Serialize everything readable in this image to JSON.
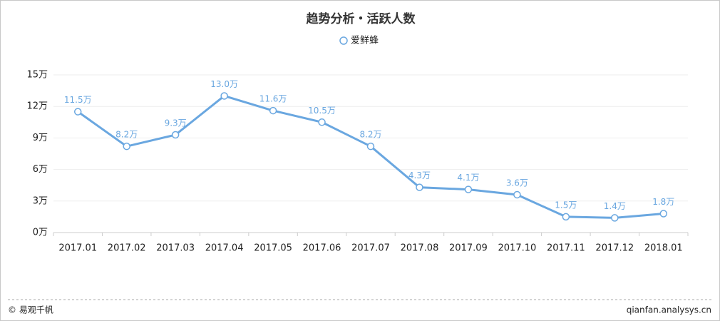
{
  "chart_data": {
    "type": "line",
    "title": "趋势分析・活跃人数",
    "categories": [
      "2017.01",
      "2017.02",
      "2017.03",
      "2017.04",
      "2017.05",
      "2017.06",
      "2017.07",
      "2017.08",
      "2017.09",
      "2017.10",
      "2017.11",
      "2017.12",
      "2018.01"
    ],
    "series": [
      {
        "name": "爱鲜蜂",
        "color": "#6aa7e0",
        "values": [
          11.5,
          8.2,
          9.3,
          13.0,
          11.6,
          10.5,
          8.2,
          4.3,
          4.1,
          3.6,
          1.5,
          1.4,
          1.8
        ],
        "value_labels": [
          "11.5万",
          "8.2万",
          "9.3万",
          "13.0万",
          "11.6万",
          "10.5万",
          "8.2万",
          "4.3万",
          "4.1万",
          "3.6万",
          "1.5万",
          "1.4万",
          "1.8万"
        ]
      }
    ],
    "ylim": [
      0,
      15
    ],
    "yticks": [
      {
        "value": 0,
        "label": "0万"
      },
      {
        "value": 3,
        "label": "3万"
      },
      {
        "value": 6,
        "label": "6万"
      },
      {
        "value": 9,
        "label": "9万"
      },
      {
        "value": 12,
        "label": "12万"
      },
      {
        "value": 15,
        "label": "15万"
      }
    ],
    "grid": true
  },
  "footer": {
    "left": "© 易观千帆",
    "right": "qianfan.analysys.cn"
  }
}
